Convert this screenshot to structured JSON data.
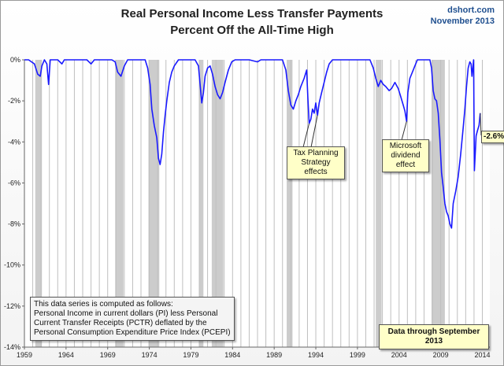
{
  "source": {
    "site": "dshort.com",
    "date": "November 2013"
  },
  "colors": {
    "line": "#1a1aff",
    "recession": "#cccccc",
    "gridline": "#bfbfbf",
    "note_fill": "#ffffc8"
  },
  "annotations": {
    "tax_planning": [
      "Tax Planning",
      "Strategy",
      "effects"
    ],
    "microsoft": [
      "Microsoft",
      "dividend",
      "effect"
    ],
    "latest_value": "-2.6%",
    "data_through": "Data through September 2013"
  },
  "method_note": [
    "This data series is computed as follows:",
    "Personal Income in current dollars  (PI) less Personal",
    "Current Transfer Receipts (PCTR) deflated by the",
    "Personal Consumption Expenditure Price Index (PCEPI)"
  ],
  "chart_data": {
    "type": "line",
    "title": "Real Personal Income Less Transfer Payments",
    "subtitle": "Percent Off the All-Time High",
    "xlabel": "",
    "ylabel": "",
    "xlim": [
      1959,
      2014.9
    ],
    "ylim": [
      -14,
      0
    ],
    "x_ticks": [
      "1959",
      "1964",
      "1969",
      "1974",
      "1979",
      "1984",
      "1989",
      "1994",
      "1999",
      "2004",
      "2009",
      "2014"
    ],
    "y_ticks": [
      "0%",
      "-2%",
      "-4%",
      "-6%",
      "-8%",
      "-10%",
      "-12%",
      "-14%"
    ],
    "grid": "vertical yearly lines",
    "recessions": [
      [
        1960.3,
        1961.1
      ],
      [
        1969.9,
        1970.9
      ],
      [
        1973.9,
        1975.2
      ],
      [
        1980.0,
        1980.5
      ],
      [
        1981.5,
        1982.9
      ],
      [
        1990.5,
        1991.2
      ],
      [
        2001.2,
        2001.9
      ],
      [
        2007.9,
        2009.5
      ]
    ],
    "series": [
      {
        "values": [
          [
            1959.0,
            0.0
          ],
          [
            1959.5,
            0.0
          ],
          [
            1960.2,
            -0.2
          ],
          [
            1960.6,
            -0.7
          ],
          [
            1960.9,
            -0.8
          ],
          [
            1961.1,
            -0.3
          ],
          [
            1961.4,
            0.0
          ],
          [
            1961.7,
            -0.2
          ],
          [
            1961.9,
            -1.2
          ],
          [
            1962.1,
            0.0
          ],
          [
            1963.0,
            0.0
          ],
          [
            1963.5,
            -0.2
          ],
          [
            1963.8,
            0.0
          ],
          [
            1965.0,
            0.0
          ],
          [
            1966.5,
            0.0
          ],
          [
            1967.0,
            -0.2
          ],
          [
            1967.4,
            0.0
          ],
          [
            1969.5,
            0.0
          ],
          [
            1969.9,
            -0.1
          ],
          [
            1970.2,
            -0.6
          ],
          [
            1970.6,
            -0.8
          ],
          [
            1971.0,
            -0.3
          ],
          [
            1971.4,
            0.0
          ],
          [
            1972.0,
            0.0
          ],
          [
            1973.5,
            0.0
          ],
          [
            1973.8,
            -0.4
          ],
          [
            1974.1,
            -1.2
          ],
          [
            1974.3,
            -2.4
          ],
          [
            1974.6,
            -3.2
          ],
          [
            1974.9,
            -3.8
          ],
          [
            1975.1,
            -4.8
          ],
          [
            1975.3,
            -5.1
          ],
          [
            1975.5,
            -4.6
          ],
          [
            1975.7,
            -3.5
          ],
          [
            1975.9,
            -2.7
          ],
          [
            1976.1,
            -2.0
          ],
          [
            1976.4,
            -1.1
          ],
          [
            1976.7,
            -0.6
          ],
          [
            1977.0,
            -0.3
          ],
          [
            1977.5,
            0.0
          ],
          [
            1979.5,
            0.0
          ],
          [
            1979.9,
            -0.3
          ],
          [
            1980.1,
            -1.2
          ],
          [
            1980.3,
            -2.1
          ],
          [
            1980.5,
            -1.6
          ],
          [
            1980.7,
            -0.8
          ],
          [
            1981.0,
            -0.4
          ],
          [
            1981.3,
            -0.3
          ],
          [
            1981.6,
            -0.7
          ],
          [
            1981.9,
            -1.3
          ],
          [
            1982.2,
            -1.7
          ],
          [
            1982.5,
            -1.9
          ],
          [
            1982.8,
            -1.6
          ],
          [
            1983.1,
            -1.1
          ],
          [
            1983.5,
            -0.5
          ],
          [
            1983.9,
            -0.1
          ],
          [
            1984.3,
            0.0
          ],
          [
            1986.0,
            0.0
          ],
          [
            1987.0,
            -0.1
          ],
          [
            1987.4,
            0.0
          ],
          [
            1990.0,
            0.0
          ],
          [
            1990.4,
            -0.5
          ],
          [
            1990.7,
            -1.5
          ],
          [
            1991.0,
            -2.2
          ],
          [
            1991.3,
            -2.4
          ],
          [
            1991.6,
            -2.0
          ],
          [
            1991.9,
            -1.7
          ],
          [
            1992.2,
            -1.3
          ],
          [
            1992.6,
            -0.9
          ],
          [
            1992.9,
            -0.5
          ],
          [
            1993.05,
            -1.9
          ],
          [
            1993.2,
            -3.1
          ],
          [
            1993.4,
            -2.9
          ],
          [
            1993.6,
            -2.4
          ],
          [
            1993.8,
            -2.6
          ],
          [
            1994.0,
            -2.1
          ],
          [
            1994.2,
            -2.7
          ],
          [
            1994.4,
            -2.1
          ],
          [
            1994.7,
            -1.6
          ],
          [
            1995.0,
            -1.1
          ],
          [
            1995.3,
            -0.6
          ],
          [
            1995.6,
            -0.2
          ],
          [
            1996.0,
            0.0
          ],
          [
            2000.5,
            0.0
          ],
          [
            2000.9,
            -0.4
          ],
          [
            2001.2,
            -0.9
          ],
          [
            2001.5,
            -1.3
          ],
          [
            2001.8,
            -1.0
          ],
          [
            2002.1,
            -1.2
          ],
          [
            2002.4,
            -1.3
          ],
          [
            2002.8,
            -1.5
          ],
          [
            2003.1,
            -1.4
          ],
          [
            2003.5,
            -1.1
          ],
          [
            2003.9,
            -1.4
          ],
          [
            2004.2,
            -1.8
          ],
          [
            2004.5,
            -2.2
          ],
          [
            2004.7,
            -2.5
          ],
          [
            2004.9,
            -3.0
          ],
          [
            2005.05,
            -1.6
          ],
          [
            2005.3,
            -0.9
          ],
          [
            2005.6,
            -0.6
          ],
          [
            2005.9,
            -0.3
          ],
          [
            2006.2,
            0.0
          ],
          [
            2007.7,
            0.0
          ],
          [
            2007.9,
            -0.4
          ],
          [
            2008.1,
            -1.5
          ],
          [
            2008.3,
            -1.9
          ],
          [
            2008.5,
            -2.0
          ],
          [
            2008.7,
            -2.6
          ],
          [
            2008.9,
            -3.9
          ],
          [
            2009.1,
            -5.5
          ],
          [
            2009.3,
            -6.2
          ],
          [
            2009.5,
            -7.0
          ],
          [
            2009.7,
            -7.4
          ],
          [
            2009.9,
            -7.6
          ],
          [
            2010.1,
            -8.0
          ],
          [
            2010.3,
            -8.2
          ],
          [
            2010.5,
            -7.0
          ],
          [
            2010.8,
            -6.4
          ],
          [
            2011.1,
            -5.7
          ],
          [
            2011.4,
            -4.6
          ],
          [
            2011.7,
            -3.3
          ],
          [
            2011.9,
            -2.4
          ],
          [
            2012.1,
            -1.3
          ],
          [
            2012.3,
            -0.4
          ],
          [
            2012.5,
            -0.1
          ],
          [
            2012.65,
            -0.2
          ],
          [
            2012.75,
            -0.8
          ],
          [
            2012.95,
            0.0
          ],
          [
            2013.05,
            -5.4
          ],
          [
            2013.25,
            -3.7
          ],
          [
            2013.45,
            -3.4
          ],
          [
            2013.6,
            -3.2
          ],
          [
            2013.75,
            -2.6
          ]
        ]
      }
    ]
  }
}
